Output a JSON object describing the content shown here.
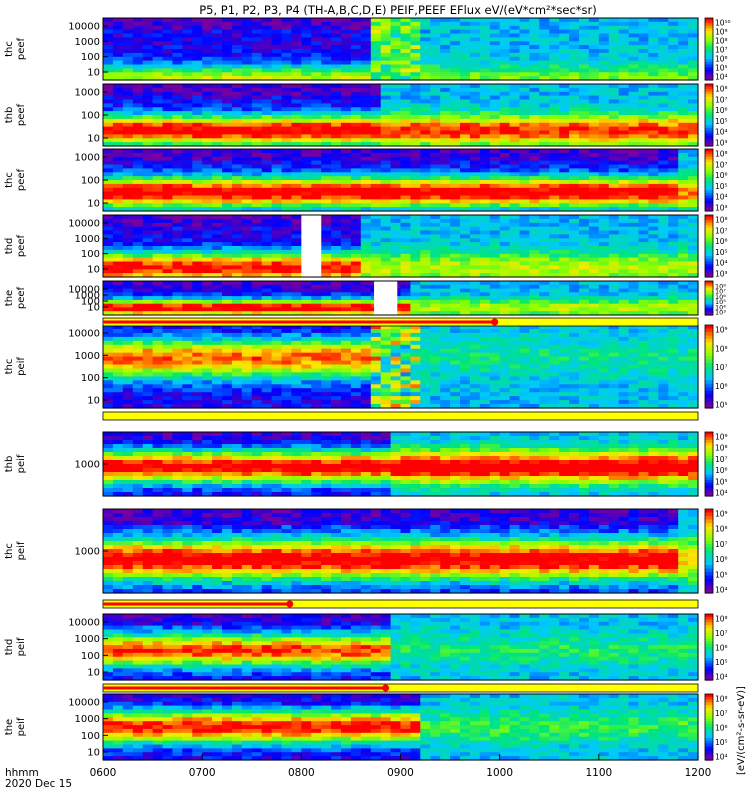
{
  "title": "P5, P1, P2, P3, P4 (TH-A,B,C,D,E) PEIF,PEEF EFlux eV/(eV*cm²*sec*sr)",
  "footer": {
    "time_label": "hhmm",
    "date_label": "2020 Dec 15"
  },
  "colorbar_unit_label": "[eV/(cm²-s-sr-eV)]",
  "colors": {
    "satellite_bar": "#ffff00",
    "marker": "#ff0000",
    "gap": "#ffffff"
  },
  "chart_data": {
    "type": "heatmap",
    "x_axis": {
      "range": [
        "0600",
        "1200"
      ],
      "tick_labels": [
        "0600",
        "0700",
        "0800",
        "0900",
        "1000",
        "1100",
        "1200"
      ]
    },
    "panels": [
      {
        "id": "thc-peef",
        "ylabel_top": "thc",
        "ylabel_bottom": "peef",
        "y_ticks": [
          "10000",
          "1000",
          "100",
          "10"
        ],
        "cbar_ticks": [
          "10¹⁰",
          "10⁹",
          "10⁸",
          "10⁷",
          "10⁶",
          "10⁵",
          "10⁴"
        ],
        "peak_band": 1.0,
        "peak_hot": 0.6,
        "transition": "0855",
        "quiet_after": 0.35,
        "spike_band": [
          0.2,
          0.55
        ],
        "gaps": []
      },
      {
        "id": "thb-peef",
        "ylabel_top": "thb",
        "ylabel_bottom": "peef",
        "y_ticks": [
          "1000",
          "100",
          "10"
        ],
        "cbar_ticks": [
          "10⁸",
          "10⁷",
          "10⁶",
          "10⁵",
          "10⁴",
          "10³"
        ],
        "peak_band": 0.75,
        "peak_hot": 0.95,
        "transition": "0845",
        "quiet_after": 0.8,
        "spike_band": null,
        "gaps": []
      },
      {
        "id": "thc-peef-2",
        "ylabel_top": "thc",
        "ylabel_bottom": "peef",
        "y_ticks": [
          "1000",
          "100",
          "10"
        ],
        "cbar_ticks": [
          "10⁸",
          "10⁷",
          "10⁶",
          "10⁵",
          "10⁴",
          "10³"
        ],
        "peak_band": 0.7,
        "peak_hot": 0.95,
        "transition": "1145",
        "quiet_after": 0.7,
        "spike_band": null,
        "gaps": []
      },
      {
        "id": "thd-peef",
        "ylabel_top": "thd",
        "ylabel_bottom": "peef",
        "y_ticks": [
          "10000",
          "1000",
          "100",
          "10"
        ],
        "cbar_ticks": [
          "10⁸",
          "10⁷",
          "10⁶",
          "10⁵",
          "10⁴",
          "10³"
        ],
        "peak_band": 0.85,
        "peak_hot": 0.9,
        "transition": "0835",
        "quiet_after": 0.45,
        "spike_band": null,
        "gaps": [
          [
            "0800",
            "0806"
          ]
        ]
      },
      {
        "id": "the-peef",
        "ylabel_top": "the",
        "ylabel_bottom": "peef",
        "y_ticks": [
          "10000",
          "1000",
          "100",
          "10"
        ],
        "cbar_ticks": [
          "10⁸",
          "10⁷",
          "10⁶",
          "10⁵",
          "10⁴",
          "10³"
        ],
        "peak_band": 0.8,
        "peak_hot": 0.95,
        "transition": "0905",
        "quiet_after": 0.45,
        "spike_band": null,
        "gaps": [
          [
            "0844",
            "0852"
          ]
        ]
      },
      {
        "id": "thc-peif",
        "ylabel_top": "thc",
        "ylabel_bottom": "peif",
        "y_ticks": [
          "10000",
          "1000",
          "100",
          "10"
        ],
        "cbar_ticks": [
          "10⁹",
          "10⁸",
          "10⁷",
          "10⁶",
          "10⁵"
        ],
        "peak_band": 0.4,
        "peak_hot": 0.8,
        "transition": "0855",
        "quiet_after": 0.15,
        "spike_band": [
          0.1,
          0.7
        ],
        "gaps": []
      },
      {
        "id": "thb-peif",
        "ylabel_top": "thb",
        "ylabel_bottom": "peif",
        "y_ticks": [
          "1000"
        ],
        "cbar_ticks": [
          "10⁹",
          "10⁸",
          "10⁷",
          "10⁶",
          "10⁵",
          "10⁴"
        ],
        "peak_band": 0.55,
        "peak_hot": 0.95,
        "transition": "0848",
        "quiet_after": 0.95,
        "spike_band": null,
        "gaps": []
      },
      {
        "id": "thc-peif-2",
        "ylabel_top": "thc",
        "ylabel_bottom": "peif",
        "y_ticks": [
          "1000"
        ],
        "cbar_ticks": [
          "10⁹",
          "10⁸",
          "10⁷",
          "10⁶",
          "10⁵",
          "10⁴"
        ],
        "peak_band": 0.6,
        "peak_hot": 0.95,
        "transition": "1145",
        "quiet_after": 0.55,
        "spike_band": null,
        "gaps": []
      },
      {
        "id": "thd-peif",
        "ylabel_top": "thd",
        "ylabel_bottom": "peif",
        "y_ticks": [
          "10000",
          "1000",
          "100",
          "10"
        ],
        "cbar_ticks": [
          "10⁸",
          "10⁷",
          "10⁶",
          "10⁵",
          "10⁴"
        ],
        "peak_band": 0.55,
        "peak_hot": 0.85,
        "transition": "0848",
        "quiet_after": 0.2,
        "spike_band": null,
        "gaps": []
      },
      {
        "id": "the-peif",
        "ylabel_top": "the",
        "ylabel_bottom": "peif",
        "y_ticks": [
          "10000",
          "1000",
          "100",
          "10"
        ],
        "cbar_ticks": [
          "10⁸",
          "10⁷",
          "10⁶",
          "10⁵",
          "10⁴"
        ],
        "peak_band": 0.5,
        "peak_hot": 0.9,
        "transition": "0908",
        "quiet_after": 0.25,
        "spike_band": null,
        "gaps": []
      }
    ],
    "satellite_bars": [
      {
        "after_panel": 4,
        "marker_end": "0957"
      },
      {
        "after_panel": 5,
        "marker_end": null
      },
      {
        "after_panel": 7,
        "marker_end": "0753"
      },
      {
        "after_panel": 8,
        "marker_end": "0851"
      }
    ]
  }
}
